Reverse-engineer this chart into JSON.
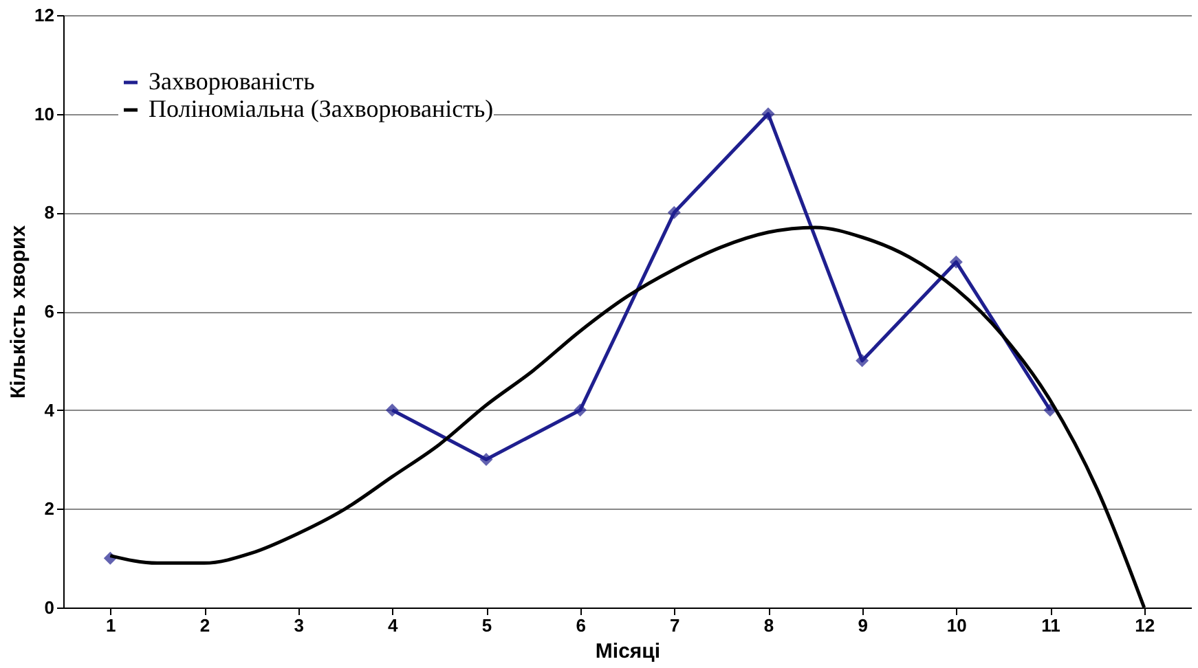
{
  "chart_data": {
    "type": "line",
    "xlabel": "Місяці",
    "ylabel": "Кількість хворих",
    "x": [
      1,
      2,
      3,
      4,
      5,
      6,
      7,
      8,
      9,
      10,
      11
    ],
    "series": [
      {
        "name": "Захворюваність",
        "color": "#1f1f8f",
        "marker": "diamond",
        "values": [
          1,
          null,
          null,
          4,
          3,
          4,
          8,
          10,
          5,
          7,
          4
        ]
      },
      {
        "name": "Поліноміальна (Захворюваність)",
        "color": "#000000",
        "marker": "none",
        "x": [
          1,
          1.5,
          2,
          2.5,
          3,
          3.5,
          4,
          4.5,
          5,
          5.5,
          6,
          6.5,
          7,
          7.5,
          8,
          8.5,
          9,
          9.5,
          10,
          10.5,
          11,
          11.5,
          12
        ],
        "values": [
          1.05,
          0.9,
          0.9,
          1.1,
          1.5,
          2.0,
          2.65,
          3.3,
          4.1,
          4.8,
          5.6,
          6.3,
          6.85,
          7.3,
          7.6,
          7.7,
          7.5,
          7.1,
          6.45,
          5.5,
          4.2,
          2.4,
          0
        ]
      }
    ],
    "xlim": [
      0.5,
      12.5
    ],
    "xticks": [
      1,
      2,
      3,
      4,
      5,
      6,
      7,
      8,
      9,
      10,
      11,
      12
    ],
    "ylim": [
      0,
      12
    ],
    "yticks": [
      0,
      2,
      4,
      6,
      8,
      10,
      12
    ],
    "grid": "y",
    "legend": "top left"
  }
}
